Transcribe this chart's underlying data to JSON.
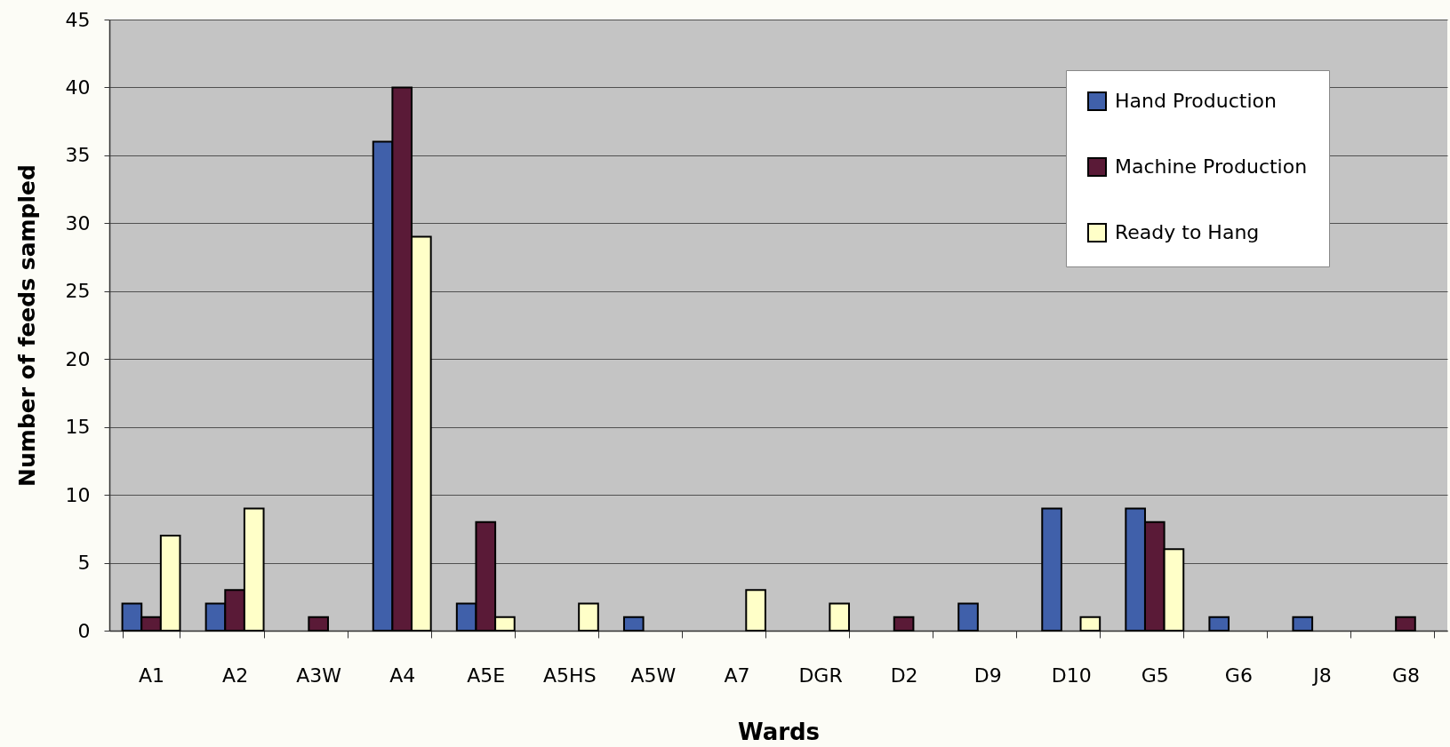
{
  "chart_data": {
    "type": "bar",
    "xlabel": "Wards",
    "ylabel": "Number of feeds sampled",
    "categories": [
      "A1",
      "A2",
      "A3W",
      "A4",
      "A5E",
      "A5HS",
      "A5W",
      "A7",
      "DGR",
      "D2",
      "D9",
      "D10",
      "G5",
      "G6",
      "J8",
      "G8"
    ],
    "series": [
      {
        "name": "Hand Production",
        "color": "#4060aa",
        "values": [
          2,
          2,
          null,
          36,
          2,
          null,
          1,
          null,
          null,
          null,
          2,
          9,
          9,
          1,
          1,
          null
        ]
      },
      {
        "name": "Machine Production",
        "color": "#5a1a37",
        "values": [
          1,
          3,
          1,
          40,
          8,
          null,
          null,
          null,
          null,
          1,
          null,
          null,
          8,
          null,
          null,
          1
        ]
      },
      {
        "name": "Ready to Hang",
        "color": "#ffffc8",
        "values": [
          7,
          9,
          null,
          29,
          1,
          2,
          null,
          3,
          2,
          null,
          null,
          1,
          6,
          null,
          null,
          null
        ]
      }
    ],
    "ylim": [
      0,
      45
    ],
    "yticks": [
      0,
      5,
      10,
      15,
      20,
      25,
      30,
      35,
      40,
      45
    ],
    "grid": "y",
    "legend": "top right"
  }
}
